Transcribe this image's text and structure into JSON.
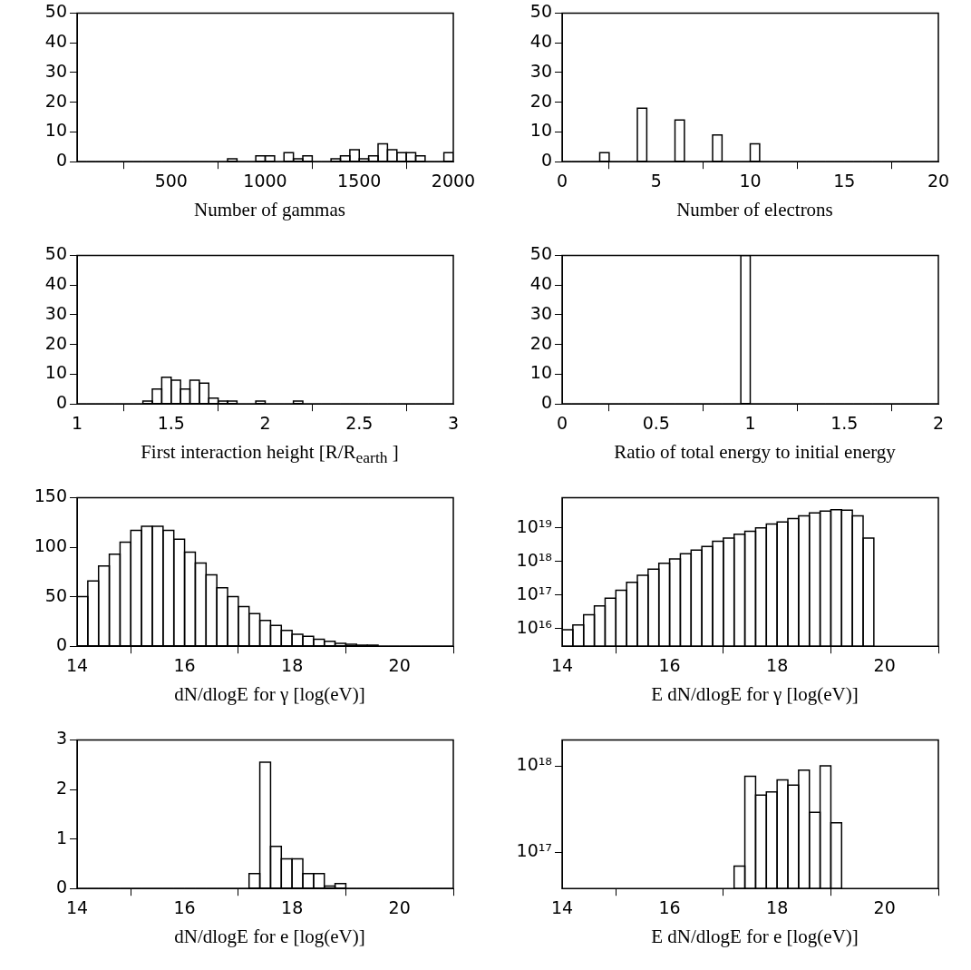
{
  "chart_data": [
    {
      "type": "histogram",
      "xlabel": "Number of gammas",
      "color": "#000000",
      "bins": [
        0,
        50,
        100,
        150,
        200,
        250,
        300,
        350,
        400,
        450,
        500,
        550,
        600,
        650,
        700,
        750,
        800,
        850,
        900,
        950,
        1000,
        1050,
        1100,
        1150,
        1200,
        1250,
        1300,
        1350,
        1400,
        1450,
        1500,
        1550,
        1600,
        1650,
        1700,
        1750,
        1800,
        1850,
        1900,
        1950,
        2000
      ],
      "values": [
        0,
        0,
        0,
        0,
        0,
        0,
        0,
        0,
        0,
        0,
        0,
        0,
        0,
        0,
        0,
        0,
        1,
        0,
        0,
        2,
        2,
        0,
        3,
        1,
        2,
        0,
        0,
        1,
        2,
        4,
        1,
        2,
        6,
        4,
        3,
        3,
        2,
        0,
        0,
        3
      ],
      "xlim": [
        0,
        2000
      ],
      "xticks": [
        500,
        1000,
        1500,
        2000
      ],
      "ylim": [
        0,
        50
      ],
      "yticks": [
        0,
        10,
        20,
        30,
        40,
        50
      ]
    },
    {
      "type": "histogram",
      "xlabel": "Number of electrons",
      "color": "#000000",
      "bins": [
        0,
        0.5,
        1,
        1.5,
        2,
        2.5,
        3,
        3.5,
        4,
        4.5,
        5,
        5.5,
        6,
        6.5,
        7,
        7.5,
        8,
        8.5,
        9,
        9.5,
        10,
        10.5,
        11,
        11.5,
        12,
        12.5,
        13,
        13.5,
        14,
        14.5,
        15,
        15.5,
        16,
        16.5,
        17,
        17.5,
        18,
        18.5,
        19,
        19.5,
        20
      ],
      "values": [
        0,
        0,
        0,
        0,
        3,
        0,
        0,
        0,
        18,
        0,
        0,
        0,
        14,
        0,
        0,
        0,
        9,
        0,
        0,
        0,
        6,
        0,
        0,
        0,
        0,
        0,
        0,
        0,
        0,
        0,
        0,
        0,
        0,
        0,
        0,
        0,
        0,
        0,
        0,
        0
      ],
      "xlim": [
        0,
        20
      ],
      "xticks": [
        0,
        5,
        10,
        15,
        20
      ],
      "ylim": [
        0,
        50
      ],
      "yticks": [
        0,
        10,
        20,
        30,
        40,
        50
      ]
    },
    {
      "type": "histogram",
      "xlabel": "First interaction height  [R/R$_{earth}$  ]",
      "color": "#000000",
      "bins": [
        1,
        1.05,
        1.1,
        1.15,
        1.2,
        1.25,
        1.3,
        1.35,
        1.4,
        1.45,
        1.5,
        1.55,
        1.6,
        1.65,
        1.7,
        1.75,
        1.8,
        1.85,
        1.9,
        1.95,
        2,
        2.05,
        2.1,
        2.15,
        2.2,
        2.25,
        2.3,
        2.35,
        2.4,
        2.45,
        2.5,
        2.55,
        2.6,
        2.65,
        2.7,
        2.75,
        2.8,
        2.85,
        2.9,
        2.95,
        3
      ],
      "values": [
        0,
        0,
        0,
        0,
        0,
        0,
        0,
        1,
        5,
        9,
        8,
        5,
        8,
        7,
        2,
        1,
        1,
        0,
        0,
        1,
        0,
        0,
        0,
        1,
        0,
        0,
        0,
        0,
        0,
        0,
        0,
        0,
        0,
        0,
        0,
        0,
        0,
        0,
        0,
        0
      ],
      "xlim": [
        1,
        3
      ],
      "xticks": [
        1,
        1.5,
        2,
        2.5,
        3
      ],
      "ylim": [
        0,
        50
      ],
      "yticks": [
        0,
        10,
        20,
        30,
        40,
        50
      ]
    },
    {
      "type": "histogram",
      "xlabel": "Ratio of total energy to initial energy",
      "color": "#000000",
      "bins": [
        0,
        0.05,
        0.1,
        0.15,
        0.2,
        0.25,
        0.3,
        0.35,
        0.4,
        0.45,
        0.5,
        0.55,
        0.6,
        0.65,
        0.7,
        0.75,
        0.8,
        0.85,
        0.9,
        0.95,
        1,
        1.05,
        1.1,
        1.15,
        1.2,
        1.25,
        1.3,
        1.35,
        1.4,
        1.45,
        1.5,
        1.55,
        1.6,
        1.65,
        1.7,
        1.75,
        1.8,
        1.85,
        1.9,
        1.95,
        2
      ],
      "values": [
        0,
        0,
        0,
        0,
        0,
        0,
        0,
        0,
        0,
        0,
        0,
        0,
        0,
        0,
        0,
        0,
        0,
        0,
        0,
        50,
        0,
        0,
        0,
        0,
        0,
        0,
        0,
        0,
        0,
        0,
        0,
        0,
        0,
        0,
        0,
        0,
        0,
        0,
        0,
        0
      ],
      "xlim": [
        0,
        2
      ],
      "xticks": [
        0,
        0.5,
        1,
        1.5,
        2
      ],
      "ylim": [
        0,
        50
      ],
      "yticks": [
        0,
        10,
        20,
        30,
        40,
        50
      ]
    },
    {
      "type": "histogram",
      "xlabel": "dN/dlogE for γ  [log(eV)]",
      "color": "#000000",
      "bins": [
        14,
        14.2,
        14.4,
        14.6,
        14.8,
        15,
        15.2,
        15.4,
        15.6,
        15.8,
        16,
        16.2,
        16.4,
        16.6,
        16.8,
        17,
        17.2,
        17.4,
        17.6,
        17.8,
        18,
        18.2,
        18.4,
        18.6,
        18.8,
        19,
        19.2,
        19.4,
        19.6,
        19.8,
        20,
        20.2,
        20.4,
        20.6,
        20.8,
        21
      ],
      "values": [
        50,
        66,
        81,
        93,
        105,
        117,
        121,
        121,
        117,
        108,
        95,
        84,
        72,
        59,
        50,
        40,
        33,
        26,
        21,
        16,
        12,
        10,
        7,
        5,
        3,
        2,
        1,
        1,
        0,
        0,
        0,
        0,
        0,
        0,
        0
      ],
      "xlim": [
        14,
        21
      ],
      "xticks": [
        14,
        16,
        18,
        20
      ],
      "ylim": [
        0,
        150
      ],
      "yticks": [
        0,
        50,
        100,
        150
      ]
    },
    {
      "type": "histogram",
      "xlabel": "E dN/dlogE for γ   [log(eV)]",
      "color": "#000000",
      "log": "y",
      "bins": [
        14,
        14.2,
        14.4,
        14.6,
        14.8,
        15,
        15.2,
        15.4,
        15.6,
        15.8,
        16,
        16.2,
        16.4,
        16.6,
        16.8,
        17,
        17.2,
        17.4,
        17.6,
        17.8,
        18,
        18.2,
        18.4,
        18.6,
        18.8,
        19,
        19.2,
        19.4,
        19.6,
        19.8,
        20,
        20.2,
        20.4,
        20.6,
        20.8,
        21
      ],
      "values": [
        9300000000000000.0,
        1.3e+16,
        2.6e+16,
        4.8e+16,
        8.1e+16,
        1.4e+17,
        2.4e+17,
        3.9e+17,
        5.9e+17,
        8.9e+17,
        1.2e+18,
        1.7e+18,
        2.2e+18,
        2.8e+18,
        4e+18,
        5e+18,
        6.5e+18,
        7.9e+18,
        1e+19,
        1.3e+19,
        1.5e+19,
        1.9e+19,
        2.3e+19,
        2.8e+19,
        3.2e+19,
        3.5e+19,
        3.4e+19,
        2.3e+19,
        5e+18,
        null,
        null,
        null,
        null,
        null,
        null
      ],
      "xlim": [
        14,
        21
      ],
      "xticks": [
        14,
        16,
        18,
        20
      ],
      "ylim": [
        3000000000000000.0,
        8e+19
      ],
      "yticks": [
        {
          "value": 1e+16,
          "label": "10¹⁶"
        },
        {
          "value": 1e+17,
          "label": "10¹⁷"
        },
        {
          "value": 1e+18,
          "label": "10¹⁸"
        },
        {
          "value": 1e+19,
          "label": "10¹⁹"
        }
      ]
    },
    {
      "type": "histogram",
      "xlabel": "dN/dlogE for e  [log(eV)]",
      "color": "#000000",
      "bins": [
        14,
        14.2,
        14.4,
        14.6,
        14.8,
        15,
        15.2,
        15.4,
        15.6,
        15.8,
        16,
        16.2,
        16.4,
        16.6,
        16.8,
        17,
        17.2,
        17.4,
        17.6,
        17.8,
        18,
        18.2,
        18.4,
        18.6,
        18.8,
        19,
        19.2,
        19.4,
        19.6,
        19.8,
        20,
        20.2,
        20.4,
        20.6,
        20.8,
        21
      ],
      "values": [
        0,
        0,
        0,
        0,
        0,
        0,
        0,
        0,
        0,
        0,
        0,
        0,
        0,
        0,
        0,
        0,
        0.3,
        2.55,
        0.85,
        0.6,
        0.6,
        0.3,
        0.3,
        0.05,
        0.1,
        0,
        0,
        0,
        0,
        0,
        0,
        0,
        0,
        0,
        0
      ],
      "xlim": [
        14,
        21
      ],
      "xticks": [
        14,
        16,
        18,
        20
      ],
      "ylim": [
        0,
        3
      ],
      "yticks": [
        0,
        1,
        2,
        3
      ]
    },
    {
      "type": "histogram",
      "xlabel": "E dN/dlogE for e  [log(eV)]",
      "color": "#000000",
      "log": "y",
      "bins": [
        14,
        14.2,
        14.4,
        14.6,
        14.8,
        15,
        15.2,
        15.4,
        15.6,
        15.8,
        16,
        16.2,
        16.4,
        16.6,
        16.8,
        17,
        17.2,
        17.4,
        17.6,
        17.8,
        18,
        18.2,
        18.4,
        18.6,
        18.8,
        19,
        19.2,
        19.4,
        19.6,
        19.8,
        20,
        20.2,
        20.4,
        20.6,
        20.8,
        21
      ],
      "values": [
        null,
        null,
        null,
        null,
        null,
        null,
        null,
        null,
        null,
        null,
        null,
        null,
        null,
        null,
        null,
        null,
        6.9e+16,
        7.6e+17,
        4.6e+17,
        5e+17,
        6.9e+17,
        6e+17,
        8.9e+17,
        2.9e+17,
        1e+18,
        2.2e+17,
        null,
        null,
        null,
        null,
        null,
        null,
        null,
        null,
        null
      ],
      "xlim": [
        14,
        21
      ],
      "xticks": [
        14,
        16,
        18,
        20
      ],
      "ylim": [
        3.8e+16,
        2e+18
      ],
      "yticks": [
        {
          "value": 1e+17,
          "label": "10¹⁷"
        },
        {
          "value": 1e+18,
          "label": "10¹⁸"
        }
      ]
    }
  ]
}
